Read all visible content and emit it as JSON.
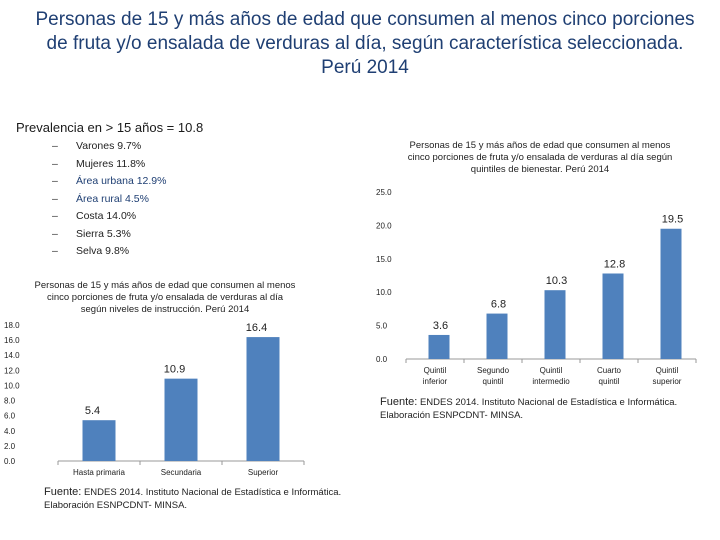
{
  "slide": {
    "title": "Personas de 15 y más años de edad que consumen al menos cinco porciones de fruta y/o ensalada de verduras al día, según característica seleccionada. Perú 2014",
    "prevalence": "Prevalencia en > 15 años = 10.8",
    "items": [
      {
        "label": "Varones 9.7%"
      },
      {
        "label": "Mujeres 11.8%"
      },
      {
        "label": "Área urbana 12.9%"
      },
      {
        "label": "Área rural 4.5%"
      },
      {
        "label": "Costa 14.0%"
      },
      {
        "label": "Sierra 5.3%"
      },
      {
        "label": "Selva 9.8%"
      }
    ],
    "source_left_prefix": "Fuente:",
    "source_left_text": " ENDES 2014. Instituto Nacional de Estadística e Informática. Elaboración ESNPCDNT- MINSA.",
    "source_right_prefix": "Fuente:",
    "source_right_text": " ENDES 2014. Instituto Nacional de Estadística e Informática. Elaboración ESNPCDNT- MINSA."
  },
  "colors": {
    "bar": "#4f81bd",
    "title": "#1f3f73",
    "axis": "#999999"
  },
  "chart_data": [
    {
      "type": "bar",
      "title_lines": [
        "Personas de 15 y más años de edad que consumen al menos",
        "cinco porciones de fruta y/o ensalada de verduras al día",
        "según niveles de instrucción. Perú 2014"
      ],
      "categories": [
        "Hasta primaria",
        "Secundaria",
        "Superior"
      ],
      "values": [
        5.4,
        10.9,
        16.4
      ],
      "ylim": [
        0,
        18
      ],
      "yticks": [
        "0.0",
        "2.0",
        "4.0",
        "6.0",
        "8.0",
        "10.0",
        "12.0",
        "14.0",
        "16.0",
        "18.0"
      ],
      "grid": false
    },
    {
      "type": "bar",
      "title_lines": [
        "Personas de 15 y más años de edad que consumen al menos",
        "cinco porciones de fruta y/o ensalada de verduras al día según",
        "quintiles de bienestar. Perú 2014"
      ],
      "categories": [
        [
          "Quintil",
          "inferior"
        ],
        [
          "Segundo",
          "quintil"
        ],
        [
          "Quintil",
          "intermedio"
        ],
        [
          "Cuarto",
          "quintil"
        ],
        [
          "Quintil",
          "superior"
        ]
      ],
      "values": [
        3.6,
        6.8,
        10.3,
        12.8,
        19.5
      ],
      "ylim": [
        0,
        25
      ],
      "yticks": [
        "0.0",
        "5.0",
        "10.0",
        "15.0",
        "20.0",
        "25.0"
      ],
      "grid": false
    }
  ]
}
